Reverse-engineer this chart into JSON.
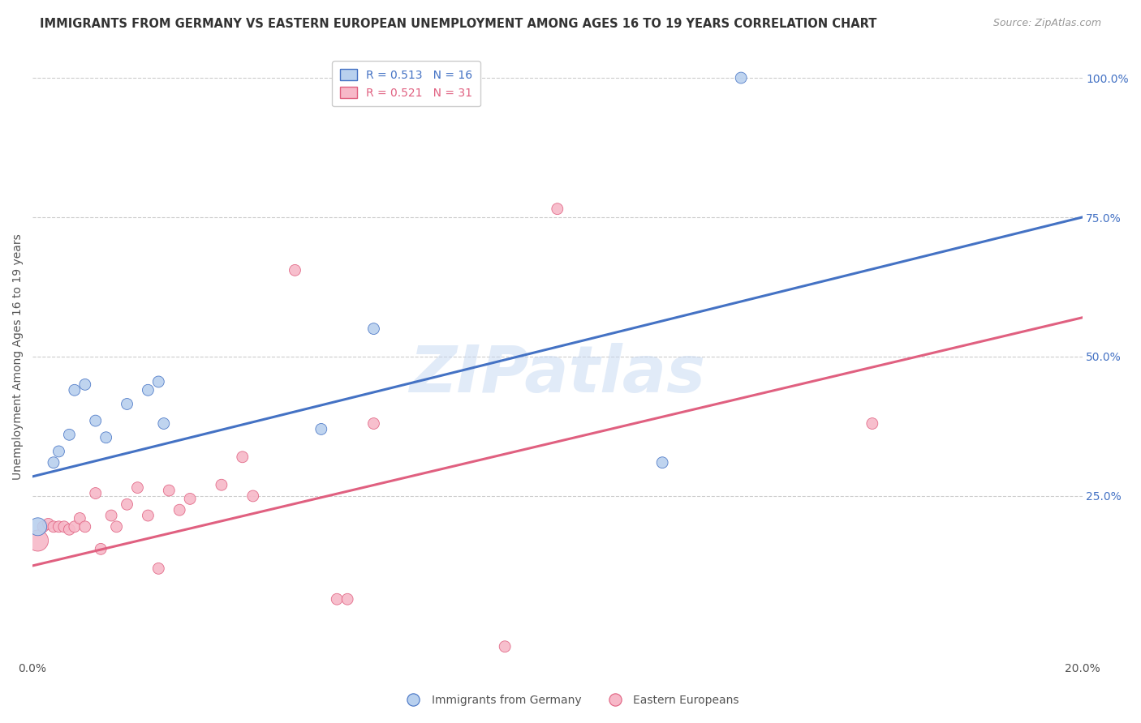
{
  "title": "IMMIGRANTS FROM GERMANY VS EASTERN EUROPEAN UNEMPLOYMENT AMONG AGES 16 TO 19 YEARS CORRELATION CHART",
  "source": "Source: ZipAtlas.com",
  "ylabel": "Unemployment Among Ages 16 to 19 years",
  "xlim": [
    0.0,
    0.2
  ],
  "ylim": [
    -0.04,
    1.04
  ],
  "x_ticks": [
    0.0,
    0.04,
    0.08,
    0.12,
    0.16,
    0.2
  ],
  "x_tick_labels": [
    "0.0%",
    "",
    "",
    "",
    "",
    "20.0%"
  ],
  "y_tick_labels_right": [
    "100.0%",
    "75.0%",
    "50.0%",
    "25.0%"
  ],
  "y_ticks_right": [
    1.0,
    0.75,
    0.5,
    0.25
  ],
  "blue_series": {
    "label": "Immigrants from Germany",
    "R": 0.513,
    "N": 16,
    "color": "#b8d0ee",
    "line_color": "#4472c4",
    "edge_color": "#4472c4",
    "scatter_x": [
      0.001,
      0.004,
      0.005,
      0.007,
      0.008,
      0.01,
      0.012,
      0.014,
      0.018,
      0.022,
      0.024,
      0.025,
      0.055,
      0.065,
      0.12,
      0.135
    ],
    "scatter_y": [
      0.195,
      0.31,
      0.33,
      0.36,
      0.44,
      0.45,
      0.385,
      0.355,
      0.415,
      0.44,
      0.455,
      0.38,
      0.37,
      0.55,
      0.31,
      1.0
    ],
    "scatter_sizes": [
      250,
      100,
      100,
      100,
      100,
      100,
      100,
      100,
      100,
      100,
      100,
      100,
      100,
      100,
      100,
      100
    ],
    "trendline_x": [
      0.0,
      0.2
    ],
    "trendline_y": [
      0.285,
      0.75
    ]
  },
  "pink_series": {
    "label": "Eastern Europeans",
    "R": 0.521,
    "N": 31,
    "color": "#f7b8c8",
    "line_color": "#e06080",
    "edge_color": "#e06080",
    "scatter_x": [
      0.001,
      0.002,
      0.003,
      0.004,
      0.005,
      0.006,
      0.007,
      0.008,
      0.009,
      0.01,
      0.012,
      0.013,
      0.015,
      0.016,
      0.018,
      0.02,
      0.022,
      0.024,
      0.026,
      0.028,
      0.03,
      0.036,
      0.04,
      0.042,
      0.05,
      0.058,
      0.06,
      0.065,
      0.09,
      0.1,
      0.16
    ],
    "scatter_y": [
      0.17,
      0.195,
      0.2,
      0.195,
      0.195,
      0.195,
      0.19,
      0.195,
      0.21,
      0.195,
      0.255,
      0.155,
      0.215,
      0.195,
      0.235,
      0.265,
      0.215,
      0.12,
      0.26,
      0.225,
      0.245,
      0.27,
      0.32,
      0.25,
      0.655,
      0.065,
      0.065,
      0.38,
      -0.02,
      0.765,
      0.38
    ],
    "scatter_sizes": [
      350,
      100,
      100,
      100,
      100,
      100,
      100,
      100,
      100,
      100,
      100,
      100,
      100,
      100,
      100,
      100,
      100,
      100,
      100,
      100,
      100,
      100,
      100,
      100,
      100,
      100,
      100,
      100,
      100,
      100,
      100
    ],
    "trendline_x": [
      0.0,
      0.2
    ],
    "trendline_y": [
      0.125,
      0.57
    ]
  },
  "watermark": "ZIPatlas",
  "title_fontsize": 10.5,
  "source_fontsize": 9,
  "axis_label_fontsize": 10,
  "legend_fontsize": 10,
  "tick_fontsize": 10,
  "background_color": "#ffffff",
  "grid_color": "#cccccc",
  "right_axis_color": "#4472c4"
}
